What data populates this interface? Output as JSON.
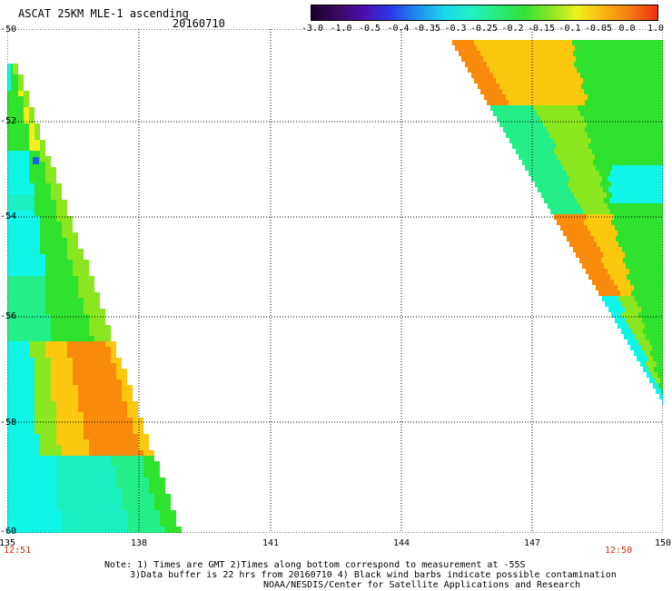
{
  "header": {
    "title": "ASCAT 25KM MLE-1 ascending",
    "date": "20160710"
  },
  "colorbar": {
    "ticks": [
      "-3.0",
      "-1.0",
      "-0.5",
      "-0.4",
      "-0.35",
      "-0.3",
      "-0.25",
      "-0.2",
      "-0.15",
      "-0.1",
      "-0.05",
      "0.0",
      "1.0"
    ],
    "colors": [
      "#1a0028",
      "#3b0a63",
      "#4a10b0",
      "#2b3ae8",
      "#1f8ef0",
      "#1ad8ea",
      "#20f0c4",
      "#28ec78",
      "#33e238",
      "#8ae624",
      "#eef21c",
      "#fbb20f",
      "#f27a10",
      "#ee3010"
    ]
  },
  "map": {
    "x_ticks": [
      "135",
      "138",
      "141",
      "144",
      "147",
      "150"
    ],
    "y_ticks": [
      "-50",
      "-52",
      "-54",
      "-56",
      "-58",
      "-60"
    ],
    "left_time": "12:51",
    "right_time": "12:50",
    "palette": {
      "cyan": "#10f5e8",
      "aqua": "#1aefc2",
      "mint": "#24ee88",
      "green": "#2ee22e",
      "lime": "#8ae61e",
      "yellow": "#f4f01e",
      "gold": "#fbc80f",
      "orange": "#f88a0c",
      "blue": "#1864e8"
    }
  },
  "notes": {
    "line1": "Note: 1) Times are GMT 2)Times along bottom correspond to measurement at -55S",
    "line2": "3)Data buffer is 22 hrs from 20160710 4) Black wind barbs indicate possible contamination",
    "line3": "NOAA/NESDIS/Center for Satellite Applications and Research"
  }
}
